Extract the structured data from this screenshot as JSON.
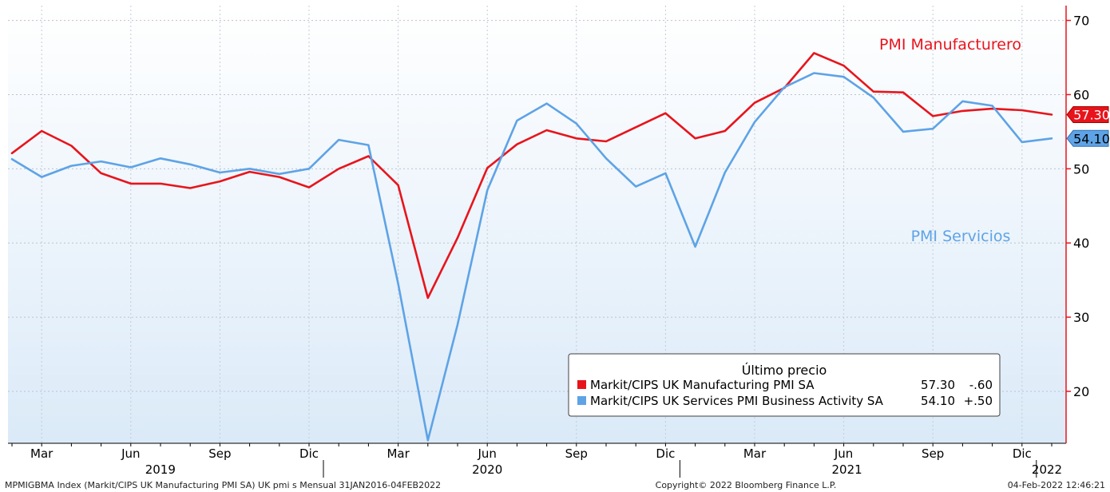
{
  "chart_data": {
    "type": "line",
    "x": [
      "2019-02",
      "2019-03",
      "2019-04",
      "2019-05",
      "2019-06",
      "2019-07",
      "2019-08",
      "2019-09",
      "2019-10",
      "2019-11",
      "2019-12",
      "2020-01",
      "2020-02",
      "2020-03",
      "2020-04",
      "2020-05",
      "2020-06",
      "2020-07",
      "2020-08",
      "2020-09",
      "2020-10",
      "2020-11",
      "2020-12",
      "2021-01",
      "2021-02",
      "2021-03",
      "2021-04",
      "2021-05",
      "2021-06",
      "2021-07",
      "2021-08",
      "2021-09",
      "2021-10",
      "2021-11",
      "2021-12",
      "2022-01"
    ],
    "series": [
      {
        "name": "Markit/CIPS UK Manufacturing PMI SA",
        "label": "PMI Manufacturero",
        "color": "#e8141c",
        "values": [
          52.1,
          55.1,
          53.1,
          49.4,
          48.0,
          48.0,
          47.4,
          48.3,
          49.6,
          48.9,
          47.5,
          50.0,
          51.7,
          47.8,
          32.6,
          40.7,
          50.1,
          53.3,
          55.2,
          54.1,
          53.7,
          55.6,
          57.5,
          54.1,
          55.1,
          58.9,
          60.9,
          65.6,
          63.9,
          60.4,
          60.3,
          57.1,
          57.8,
          58.1,
          57.9,
          57.3
        ],
        "last_value": "57.30",
        "change": "-.60"
      },
      {
        "name": "Markit/CIPS UK Services PMI Business Activity SA",
        "label": "PMI Servicios",
        "color": "#5ea3e6",
        "values": [
          51.3,
          48.9,
          50.4,
          51.0,
          50.2,
          51.4,
          50.6,
          49.5,
          50.0,
          49.3,
          50.0,
          53.9,
          53.2,
          34.5,
          13.4,
          29.0,
          47.1,
          56.5,
          58.8,
          56.1,
          51.4,
          47.6,
          49.4,
          39.5,
          49.5,
          56.3,
          61.0,
          62.9,
          62.4,
          59.6,
          55.0,
          55.4,
          59.1,
          58.5,
          53.6,
          54.1
        ],
        "last_value": "54.10",
        "change": "+.50"
      }
    ],
    "ylim": [
      13,
      72
    ],
    "yticks": [
      20,
      30,
      40,
      50,
      60,
      70
    ],
    "ytick_labels": [
      "20",
      "30",
      "40",
      "50",
      "60",
      "70"
    ],
    "y_axis_side": "right",
    "x_month_labels": [
      "Mar",
      "Jun",
      "Sep",
      "Dic",
      "Mar",
      "Jun",
      "Sep",
      "Dic",
      "Mar",
      "Jun",
      "Sep",
      "Dic"
    ],
    "x_month_positions": [
      "2019-03",
      "2019-06",
      "2019-09",
      "2019-12",
      "2020-03",
      "2020-06",
      "2020-09",
      "2020-12",
      "2021-03",
      "2021-06",
      "2021-09",
      "2021-12"
    ],
    "x_year_labels": [
      "2019",
      "2020",
      "2021",
      "2022"
    ],
    "grid": true,
    "legend": {
      "title": "Último precio",
      "placement": "bottom-right"
    },
    "footer": {
      "left": "MPMIGBMA Index (Markit/CIPS UK Manufacturing PMI SA) UK pmi s  Mensual 31JAN2016-04FEB2022",
      "center": "Copyright© 2022 Bloomberg Finance L.P.",
      "right": "04-Feb-2022 12:46:21"
    }
  }
}
